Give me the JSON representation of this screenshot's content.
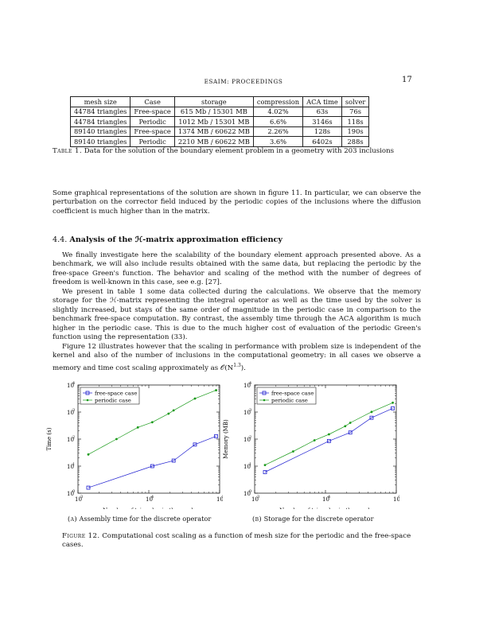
{
  "header": {
    "running_head": "ESAIM: PROCEEDINGS",
    "page_number": "17"
  },
  "table1": {
    "columns": [
      "mesh size",
      "Case",
      "storage",
      "compression",
      "ACA time",
      "solver"
    ],
    "rows": [
      [
        "44784 triangles",
        "Free-space",
        "615 Mb / 15301 MB",
        "4.02%",
        "63s",
        "76s"
      ],
      [
        "44784 triangles",
        "Periodic",
        "1012 Mb / 15301 MB",
        "6.6%",
        "3146s",
        "118s"
      ],
      [
        "89140 triangles",
        "Free-space",
        "1374 MB / 60622 MB",
        "2.26%",
        "128s",
        "190s"
      ],
      [
        "89140 triangles",
        "Periodic",
        "2210 MB / 60622 MB",
        "3.6%",
        "6402s",
        "288s"
      ]
    ],
    "caption_label": "Table 1.",
    "caption_text": "Data for the solution of the boundary element problem in a geometry with 203 inclusions"
  },
  "paragraph_graphical": "Some graphical representations of the solution are shown in figure 11. In particular, we can observe the perturbation on the corrector field induced by the periodic copies of the inclusions where the diffusion coefficient is much higher than in the matrix.",
  "section": {
    "number": "4.4.",
    "title_prefix": "Analysis of the ",
    "title_h": "ℋ",
    "title_suffix": "-matrix approximation efficiency"
  },
  "paragraph_1": "We finally investigate here the scalability of the boundary element approach presented above. As a benchmark, we will also include results obtained with the same data, but replacing the periodic by the free-space Green's function. The behavior and scaling of the method with the number of degrees of freedom is well-known in this case, see e.g. [27].",
  "paragraph_2": "We present in table 1 some data collected during the calculations. We observe that the memory storage for the ℋ-matrix representing the integral operator as well as the time used by the solver is slightly increased, but stays of the same order of magnitude in the periodic case in comparison to the benchmark free-space computation. By contrast, the assembly time through the ACA algorithm is much higher in the periodic case. This is due to the much higher cost of evaluation of the periodic Green's function using the representation (33).",
  "paragraph_3_pre": "Figure 12 illustrates however that the scaling in performance with problem size is independent of the kernel and also of the number of inclusions in the computational geometry: in all cases we observe a memory and time cost scaling approximately as 𝒪(N",
  "paragraph_3_exp": "1.3",
  "paragraph_3_post": ").",
  "figure_caption_label": "Figure 12.",
  "figure_caption_text": "Computational cost scaling as a function of mesh size for the periodic and the free-space cases.",
  "colors": {
    "free_space": "#1f1fd0",
    "periodic": "#1a9a1a"
  },
  "chart_data": [
    {
      "type": "line",
      "subcaption_label": "(a)",
      "subcaption_text": "Assembly time for the discrete operator",
      "xlabel": "Number of triangles in the mesh",
      "ylabel": "Time (s)",
      "xscale": "log",
      "yscale": "log",
      "xlim": [
        1000,
        100000
      ],
      "ylim": [
        1,
        10000
      ],
      "x_ticks": [
        "10",
        "10",
        "10"
      ],
      "x_tick_exps": [
        "3",
        "4",
        "5"
      ],
      "y_ticks": [
        "10",
        "10",
        "10",
        "10",
        "10"
      ],
      "y_tick_exps": [
        "0",
        "1",
        "2",
        "3",
        "4"
      ],
      "legend": "top-left",
      "series": [
        {
          "name": "free-space case",
          "marker": "square",
          "x": [
            1400,
            11200,
            22400,
            44784,
            89140
          ],
          "y": [
            1.6,
            10,
            16,
            63,
            128
          ]
        },
        {
          "name": "periodic case",
          "marker": "diamond",
          "x": [
            1400,
            3500,
            7000,
            11200,
            19000,
            22400,
            44784,
            89140
          ],
          "y": [
            27,
            100,
            270,
            420,
            870,
            1150,
            3146,
            6402
          ]
        }
      ]
    },
    {
      "type": "line",
      "subcaption_label": "(b)",
      "subcaption_text": "Storage for the discrete operator",
      "xlabel": "Number of triangles in the mesh",
      "ylabel": "Memory (MB)",
      "xscale": "log",
      "yscale": "log",
      "xlim": [
        1000,
        100000
      ],
      "ylim": [
        1,
        10000
      ],
      "x_ticks": [
        "10",
        "10",
        "10"
      ],
      "x_tick_exps": [
        "3",
        "4",
        "5"
      ],
      "y_ticks": [
        "10",
        "10",
        "10",
        "10",
        "10"
      ],
      "y_tick_exps": [
        "0",
        "1",
        "2",
        "3",
        "4"
      ],
      "legend": "top-left",
      "series": [
        {
          "name": "free-space case",
          "marker": "square",
          "x": [
            1400,
            11200,
            22400,
            44784,
            89140
          ],
          "y": [
            6,
            85,
            175,
            615,
            1374
          ]
        },
        {
          "name": "periodic case",
          "marker": "diamond",
          "x": [
            1400,
            3500,
            7000,
            11200,
            19000,
            22400,
            44784,
            89140
          ],
          "y": [
            11,
            35,
            90,
            150,
            300,
            400,
            1012,
            2210
          ]
        }
      ]
    }
  ]
}
